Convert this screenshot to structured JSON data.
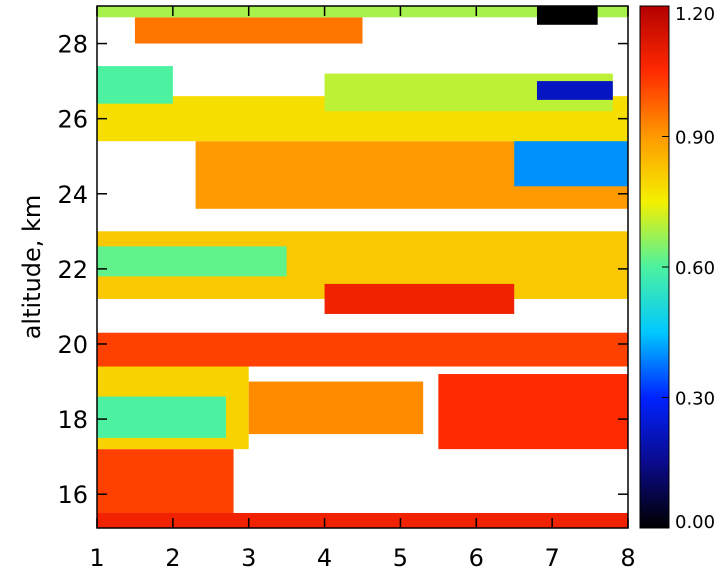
{
  "chart_data": {
    "type": "heatmap",
    "title": "",
    "ylabel": "altitude, km",
    "xlabel": "",
    "xlim": [
      1,
      8
    ],
    "ylim": [
      15.1,
      29.0
    ],
    "x_ticks": [
      "1",
      "2",
      "3",
      "4",
      "5",
      "6",
      "7",
      "8"
    ],
    "y_ticks": [
      "16",
      "18",
      "20",
      "22",
      "24",
      "26",
      "28"
    ],
    "colorbar": {
      "range": [
        0.0,
        1.2
      ],
      "ticks": [
        "0.00",
        "0.30",
        "0.60",
        "0.90",
        "1.20"
      ],
      "colormap": [
        "#000000",
        "#0a0a8c",
        "#0022ff",
        "#00c8ff",
        "#4cf2a0",
        "#f4f000",
        "#ff9a00",
        "#ff2a00",
        "#b40000",
        "#ffffff"
      ]
    },
    "bands": [
      {
        "x": [
          1.0,
          2.8
        ],
        "y": [
          15.2,
          17.2
        ],
        "value": 1.02
      },
      {
        "x": [
          1.0,
          8.0
        ],
        "y": [
          15.1,
          15.5
        ],
        "value": 1.08
      },
      {
        "x": [
          1.0,
          3.0
        ],
        "y": [
          17.2,
          19.8
        ],
        "value": 0.8
      },
      {
        "x": [
          1.0,
          2.7
        ],
        "y": [
          17.5,
          18.6
        ],
        "value": 0.6
      },
      {
        "x": [
          3.0,
          5.3
        ],
        "y": [
          17.6,
          19.0
        ],
        "value": 0.92
      },
      {
        "x": [
          5.5,
          8.0
        ],
        "y": [
          17.2,
          19.2
        ],
        "value": 1.05
      },
      {
        "x": [
          1.0,
          8.0
        ],
        "y": [
          19.4,
          20.3
        ],
        "value": 1.02
      },
      {
        "x": [
          1.0,
          8.0
        ],
        "y": [
          21.2,
          23.0
        ],
        "value": 0.82
      },
      {
        "x": [
          1.0,
          3.5
        ],
        "y": [
          21.8,
          22.6
        ],
        "value": 0.62
      },
      {
        "x": [
          4.0,
          6.5
        ],
        "y": [
          20.8,
          21.6
        ],
        "value": 1.08
      },
      {
        "x": [
          2.3,
          8.0
        ],
        "y": [
          23.6,
          25.4
        ],
        "value": 0.9
      },
      {
        "x": [
          6.5,
          8.0
        ],
        "y": [
          24.2,
          25.5
        ],
        "value": 0.4
      },
      {
        "x": [
          1.0,
          8.0
        ],
        "y": [
          25.4,
          26.6
        ],
        "value": 0.78
      },
      {
        "x": [
          1.0,
          2.0
        ],
        "y": [
          26.4,
          27.4
        ],
        "value": 0.6
      },
      {
        "x": [
          4.0,
          7.8
        ],
        "y": [
          26.2,
          27.2
        ],
        "value": 0.7
      },
      {
        "x": [
          6.8,
          7.8
        ],
        "y": [
          26.5,
          27.0
        ],
        "value": 0.22
      },
      {
        "x": [
          1.5,
          4.5
        ],
        "y": [
          28.0,
          28.7
        ],
        "value": 0.95
      },
      {
        "x": [
          1.0,
          8.0
        ],
        "y": [
          28.7,
          29.0
        ],
        "value": 0.68
      },
      {
        "x": [
          6.8,
          7.6
        ],
        "y": [
          28.5,
          29.0
        ],
        "value": 0.0
      }
    ]
  }
}
